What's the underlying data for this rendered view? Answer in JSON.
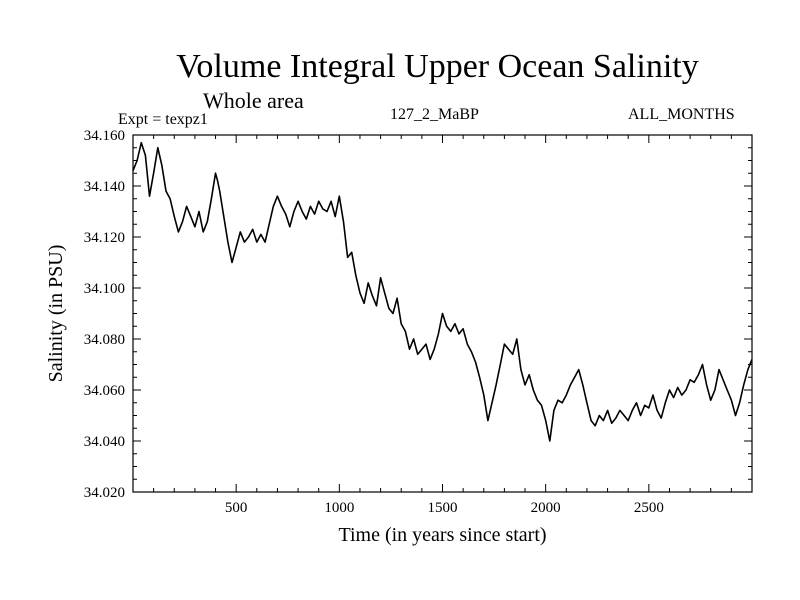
{
  "chart_data": {
    "type": "line",
    "title": "Volume Integral Upper Ocean Salinity",
    "subtitle": "Whole area",
    "left_label": "Expt = texpz1",
    "center_label": "127_2_MaBP",
    "right_label": "ALL_MONTHS",
    "xlabel": "Time (in years since start)",
    "ylabel": "Salinity (in PSU)",
    "xlim": [
      0,
      3000
    ],
    "ylim": [
      34.02,
      34.16
    ],
    "xticks": [
      500,
      1000,
      1500,
      2000,
      2500
    ],
    "xtick_labels": [
      "500",
      "1000",
      "1500",
      "2000",
      "2500"
    ],
    "yticks": [
      34.02,
      34.04,
      34.06,
      34.08,
      34.1,
      34.12,
      34.14,
      34.16
    ],
    "ytick_labels": [
      "34.020",
      "34.040",
      "34.060",
      "34.080",
      "34.100",
      "34.120",
      "34.140",
      "34.160"
    ],
    "grid": false,
    "series": [
      {
        "x": [
          0,
          20,
          40,
          60,
          80,
          100,
          120,
          140,
          160,
          180,
          200,
          220,
          240,
          260,
          280,
          300,
          320,
          340,
          360,
          380,
          400,
          410,
          420,
          440,
          460,
          480,
          500,
          520,
          540,
          560,
          580,
          600,
          620,
          640,
          660,
          680,
          700,
          720,
          740,
          760,
          780,
          800,
          820,
          840,
          860,
          880,
          900,
          920,
          940,
          960,
          980,
          1000,
          1020,
          1040,
          1060,
          1080,
          1100,
          1120,
          1140,
          1160,
          1180,
          1200,
          1220,
          1240,
          1260,
          1280,
          1300,
          1320,
          1340,
          1360,
          1380,
          1400,
          1420,
          1440,
          1460,
          1480,
          1500,
          1520,
          1540,
          1560,
          1580,
          1600,
          1620,
          1640,
          1660,
          1680,
          1700,
          1720,
          1740,
          1760,
          1780,
          1800,
          1820,
          1840,
          1860,
          1880,
          1900,
          1920,
          1940,
          1960,
          1980,
          2000,
          2020,
          2040,
          2060,
          2080,
          2100,
          2120,
          2140,
          2160,
          2180,
          2200,
          2220,
          2240,
          2260,
          2280,
          2300,
          2320,
          2340,
          2360,
          2380,
          2400,
          2420,
          2440,
          2460,
          2480,
          2500,
          2520,
          2540,
          2560,
          2580,
          2600,
          2620,
          2640,
          2660,
          2680,
          2700,
          2720,
          2740,
          2760,
          2780,
          2800,
          2820,
          2840,
          2860,
          2880,
          2900,
          2920,
          2940,
          2960,
          2980,
          3000
        ],
        "values": [
          34.146,
          34.15,
          34.157,
          34.152,
          34.136,
          34.145,
          34.155,
          34.148,
          34.138,
          34.135,
          34.128,
          34.122,
          34.126,
          34.132,
          34.128,
          34.124,
          34.13,
          34.122,
          34.126,
          34.135,
          34.145,
          34.142,
          34.138,
          34.128,
          34.118,
          34.11,
          34.116,
          34.122,
          34.118,
          34.12,
          34.123,
          34.118,
          34.121,
          34.118,
          34.125,
          34.132,
          34.136,
          34.132,
          34.129,
          34.124,
          34.13,
          34.134,
          34.13,
          34.127,
          34.132,
          34.129,
          34.134,
          34.131,
          34.13,
          34.134,
          34.128,
          34.136,
          34.126,
          34.112,
          34.114,
          34.105,
          34.098,
          34.094,
          34.102,
          34.097,
          34.093,
          34.104,
          34.098,
          34.092,
          34.09,
          34.096,
          34.086,
          34.083,
          34.076,
          34.08,
          34.074,
          34.076,
          34.078,
          34.072,
          34.076,
          34.082,
          34.09,
          34.085,
          34.083,
          34.086,
          34.082,
          34.084,
          34.078,
          34.075,
          34.071,
          34.065,
          34.058,
          34.048,
          34.055,
          34.062,
          34.07,
          34.078,
          34.076,
          34.074,
          34.08,
          34.068,
          34.062,
          34.066,
          34.06,
          34.056,
          34.054,
          34.048,
          34.04,
          34.052,
          34.056,
          34.055,
          34.058,
          34.062,
          34.065,
          34.068,
          34.062,
          34.055,
          34.048,
          34.046,
          34.05,
          34.048,
          34.052,
          34.047,
          34.049,
          34.052,
          34.05,
          34.048,
          34.052,
          34.055,
          34.05,
          34.054,
          34.053,
          34.058,
          34.052,
          34.049,
          34.055,
          34.06,
          34.057,
          34.061,
          34.058,
          34.06,
          34.064,
          34.063,
          34.066,
          34.07,
          34.062,
          34.056,
          34.06,
          34.068,
          34.064,
          34.06,
          34.056,
          34.05,
          34.055,
          34.062,
          34.068,
          34.072
        ]
      }
    ]
  }
}
